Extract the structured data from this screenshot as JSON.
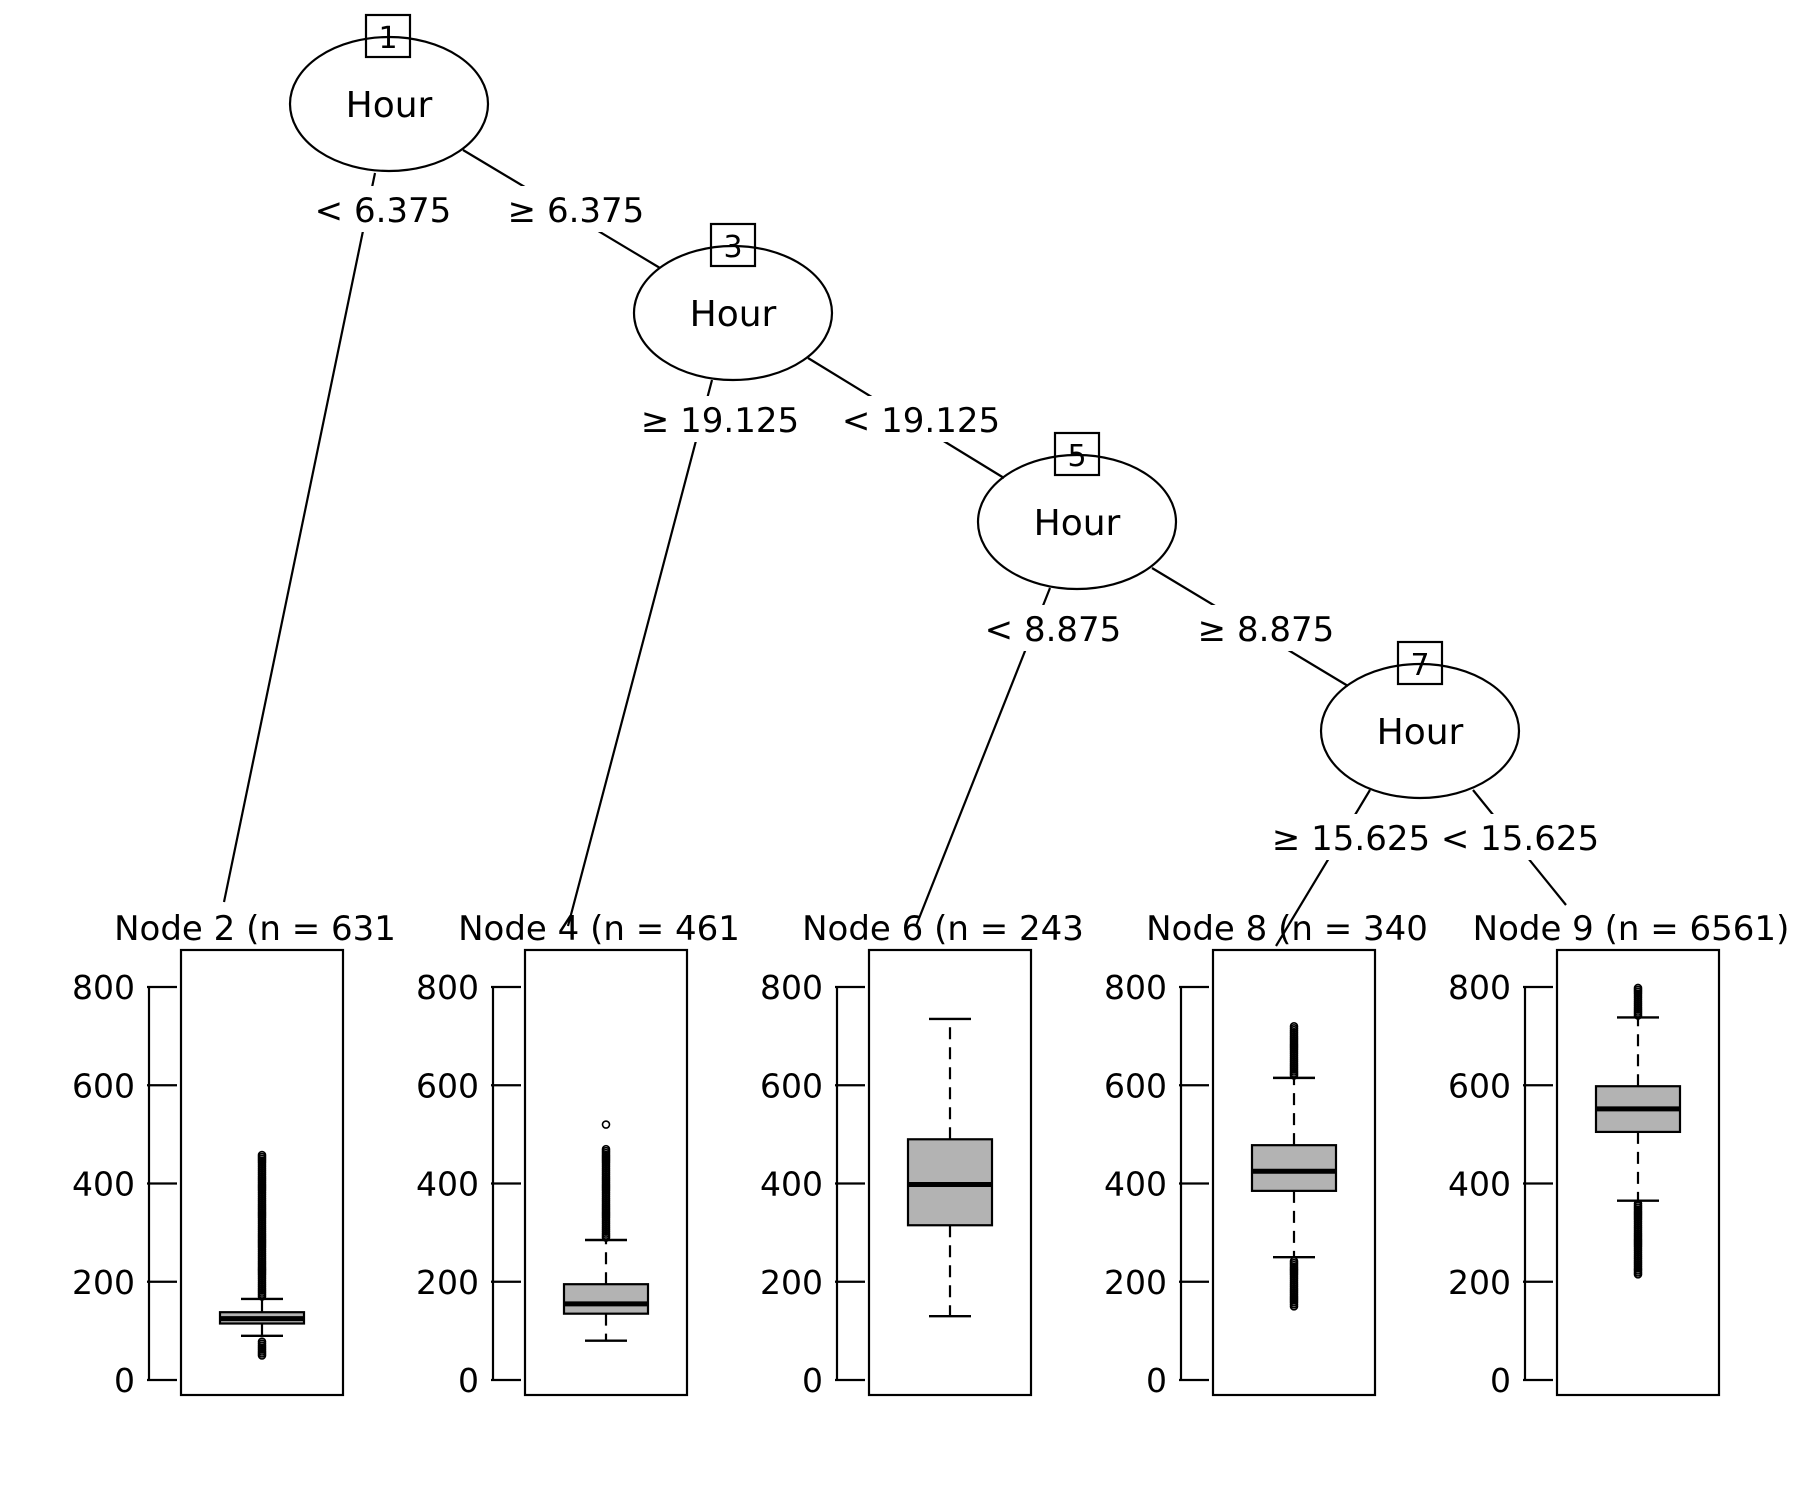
{
  "colors": {
    "box_fill": "#b3b3b3",
    "stroke": "#000000",
    "background": "#ffffff"
  },
  "inner_nodes": [
    {
      "id": "1",
      "variable": "Hour"
    },
    {
      "id": "3",
      "variable": "Hour"
    },
    {
      "id": "5",
      "variable": "Hour"
    },
    {
      "id": "7",
      "variable": "Hour"
    }
  ],
  "edges": [
    {
      "from": "1",
      "to": "2",
      "label": "< 6.375"
    },
    {
      "from": "1",
      "to": "3",
      "label": "≥ 6.375"
    },
    {
      "from": "3",
      "to": "4",
      "label": "≥ 19.125"
    },
    {
      "from": "3",
      "to": "5",
      "label": "< 19.125"
    },
    {
      "from": "5",
      "to": "6",
      "label": "< 8.875"
    },
    {
      "from": "5",
      "to": "7",
      "label": "≥ 8.875"
    },
    {
      "from": "7",
      "to": "8",
      "label": "≥ 15.625"
    },
    {
      "from": "7",
      "to": "9",
      "label": "< 15.625"
    }
  ],
  "chart_data": {
    "type": "boxplot",
    "ylim": [
      0,
      800
    ],
    "yticks": [
      "0",
      "200",
      "400",
      "600",
      "800"
    ],
    "panels": [
      {
        "id": "2",
        "title": "Node 2 (n = 631",
        "box": {
          "whisker_low": 90,
          "q1": 115,
          "median": 125,
          "q3": 138,
          "whisker_high": 165
        },
        "outliers_low": [
          50,
          80
        ],
        "outliers_high": [
          170,
          460
        ]
      },
      {
        "id": "4",
        "title": "Node 4 (n = 461",
        "box": {
          "whisker_low": 80,
          "q1": 135,
          "median": 155,
          "q3": 195,
          "whisker_high": 285
        },
        "outliers_low": [],
        "outliers_high": [
          290,
          470,
          520
        ]
      },
      {
        "id": "6",
        "title": "Node 6 (n = 243",
        "box": {
          "whisker_low": 130,
          "q1": 315,
          "median": 398,
          "q3": 490,
          "whisker_high": 735
        },
        "outliers_low": [],
        "outliers_high": []
      },
      {
        "id": "8",
        "title": "Node 8 (n = 340",
        "box": {
          "whisker_low": 250,
          "q1": 385,
          "median": 425,
          "q3": 478,
          "whisker_high": 615
        },
        "outliers_low": [
          150,
          245
        ],
        "outliers_high": [
          620,
          720
        ]
      },
      {
        "id": "9",
        "title": "Node 9 (n = 6561)",
        "box": {
          "whisker_low": 365,
          "q1": 505,
          "median": 552,
          "q3": 598,
          "whisker_high": 738
        },
        "outliers_low": [
          215,
          360
        ],
        "outliers_high": [
          742,
          800
        ]
      }
    ]
  }
}
